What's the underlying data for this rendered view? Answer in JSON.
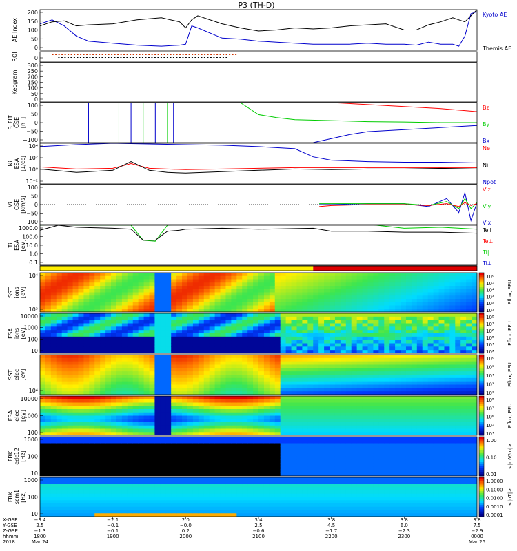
{
  "chart_data": {
    "type": "line",
    "title": "P3 (TH-D)",
    "panels": [
      {
        "id": "ae",
        "ylabel": [
          "AE Index"
        ],
        "ylim": [
          0,
          200
        ],
        "yticks": [
          "200",
          "150",
          "100",
          "50",
          "0"
        ],
        "legend": [
          {
            "name": "Kyoto AE",
            "color": "#0000cc"
          },
          {
            "name": "Themis AE",
            "color": "#000000"
          }
        ],
        "series": [
          {
            "name": "Kyoto AE",
            "color": "#0000cc",
            "x": [
              1800,
              1810,
              1820,
              1830,
              1840,
              1900,
              1920,
              1940,
              1955,
              2000,
              2005,
              2010,
              2030,
              2045,
              2100,
              2115,
              2130,
              2145,
              2200,
              2215,
              2230,
              2245,
              2300,
              2310,
              2320,
              2330,
              2340,
              2345,
              2350,
              2355,
              2400
            ],
            "y": [
              130,
              150,
              120,
              70,
              45,
              35,
              25,
              20,
              25,
              30,
              120,
              110,
              60,
              55,
              45,
              40,
              35,
              30,
              30,
              30,
              35,
              30,
              30,
              25,
              40,
              30,
              30,
              20,
              70,
              180,
              190
            ]
          },
          {
            "name": "Themis AE",
            "color": "#000000",
            "x": [
              1800,
              1810,
              1820,
              1830,
              1840,
              1900,
              1920,
              1940,
              1955,
              2000,
              2005,
              2010,
              2030,
              2045,
              2100,
              2115,
              2130,
              2145,
              2200,
              2215,
              2230,
              2245,
              2300,
              2310,
              2320,
              2330,
              2340,
              2345,
              2350,
              2355,
              2400
            ],
            "y": [
              120,
              140,
              145,
              120,
              125,
              130,
              150,
              160,
              140,
              110,
              150,
              170,
              130,
              110,
              95,
              100,
              110,
              105,
              110,
              120,
              125,
              130,
              100,
              100,
              125,
              140,
              160,
              150,
              140,
              170,
              200
            ]
          }
        ]
      },
      {
        "id": "roi",
        "ylabel": [
          "ROI"
        ],
        "ylim": [
          0,
          1
        ],
        "yticks": [
          "0"
        ]
      },
      {
        "id": "keogram",
        "ylabel": [
          "Keogram"
        ],
        "ylim": [
          0,
          300
        ],
        "yticks": [
          "300",
          "250",
          "200",
          "150",
          "100",
          "50",
          "0"
        ]
      },
      {
        "id": "bfield",
        "ylabel": [
          "B_FIT",
          "GSE",
          "[nT]"
        ],
        "ylim": [
          -100,
          100
        ],
        "yticks": [
          "100",
          "50",
          "0",
          "−50",
          "−100"
        ],
        "legend": [
          {
            "name": "Bz",
            "color": "#ff0000"
          },
          {
            "name": "By",
            "color": "#00cc00"
          },
          {
            "name": "Bx",
            "color": "#0000cc"
          }
        ],
        "series": [
          {
            "name": "Bz",
            "color": "#ff0000",
            "x": [
              2200,
              2230,
              2300,
              2330,
              2350,
              2400
            ],
            "y": [
              100,
              90,
              80,
              70,
              60,
              55
            ]
          },
          {
            "name": "By",
            "color": "#00cc00",
            "x": [
              2045,
              2100,
              2115,
              2130,
              2200,
              2230,
              2300,
              2330,
              2400
            ],
            "y": [
              100,
              40,
              25,
              15,
              10,
              5,
              3,
              0,
              0
            ]
          },
          {
            "name": "Bx",
            "color": "#0000cc",
            "x": [
              2145,
              2200,
              2215,
              2230,
              2300,
              2330,
              2400
            ],
            "y": [
              -100,
              -80,
              -60,
              -45,
              -35,
              -25,
              -15
            ]
          }
        ]
      },
      {
        "id": "density",
        "ylabel": [
          "Ni",
          "ESA",
          "[1/cc]"
        ],
        "ylim": [
          -2,
          4
        ],
        "scale": "log",
        "yticks": [
          "10⁴",
          "10²",
          "10⁰",
          "10⁻²"
        ],
        "legend": [
          {
            "name": "Ne",
            "color": "#ff0000"
          },
          {
            "name": "Ni",
            "color": "#000000"
          },
          {
            "name": "Npot",
            "color": "#0000cc"
          }
        ],
        "series": [
          {
            "name": "Npot",
            "color": "#0000cc",
            "x": [
              1800,
              1830,
              1900,
              1930,
              2000,
              2030,
              2100,
              2130,
              2145,
              2200,
              2230,
              2300,
              2330,
              2400
            ],
            "y": [
              3.5,
              3.8,
              4.0,
              3.9,
              3.8,
              3.7,
              3.5,
              3.2,
              2.0,
              1.5,
              1.3,
              1.2,
              1.2,
              1.1
            ]
          },
          {
            "name": "Ne",
            "color": "#ff0000",
            "x": [
              1800,
              1830,
              1900,
              1915,
              1930,
              1945,
              2000,
              2030,
              2100,
              2130,
              2200,
              2230,
              2300,
              2330,
              2400
            ],
            "y": [
              0.5,
              0.2,
              0.3,
              1.0,
              0.3,
              0.2,
              0.1,
              0.2,
              0.3,
              0.4,
              0.4,
              0.4,
              0.4,
              0.4,
              0.4
            ]
          },
          {
            "name": "Ni",
            "color": "#000000",
            "x": [
              1800,
              1830,
              1900,
              1915,
              1930,
              1945,
              2000,
              2030,
              2100,
              2130,
              2200,
              2230,
              2300,
              2330,
              2400
            ],
            "y": [
              0.2,
              -0.3,
              0.0,
              1.3,
              0.0,
              -0.3,
              -0.4,
              -0.2,
              0.0,
              0.2,
              0.1,
              0.2,
              0.2,
              0.3,
              0.2
            ]
          }
        ]
      },
      {
        "id": "velocity",
        "ylabel": [
          "Vi",
          "GSE",
          "[km/s]"
        ],
        "ylim": [
          -100,
          100
        ],
        "yticks": [
          "100",
          "50",
          "0",
          "−50",
          "−100"
        ],
        "legend": [
          {
            "name": "Viz",
            "color": "#ff0000"
          },
          {
            "name": "Viy",
            "color": "#00cc00"
          },
          {
            "name": "Vix",
            "color": "#0000cc"
          }
        ],
        "series": [
          {
            "name": "Vix",
            "color": "#0000cc",
            "x": [
              2150,
              2200,
              2230,
              2300,
              2320,
              2335,
              2345,
              2350,
              2355,
              2400
            ],
            "y": [
              0,
              0,
              5,
              5,
              -10,
              30,
              -40,
              60,
              -80,
              10
            ]
          },
          {
            "name": "Viy",
            "color": "#00cc00",
            "x": [
              2150,
              2200,
              2230,
              2300,
              2320,
              2335,
              2345,
              2350,
              2355,
              2400
            ],
            "y": [
              5,
              5,
              5,
              5,
              -5,
              15,
              -20,
              30,
              -20,
              10
            ]
          },
          {
            "name": "Viz",
            "color": "#ff0000",
            "x": [
              2150,
              2200,
              2230,
              2300,
              2320,
              2335,
              2345,
              2350,
              2355,
              2400
            ],
            "y": [
              -10,
              -5,
              0,
              0,
              -5,
              5,
              -10,
              10,
              -5,
              5
            ]
          }
        ]
      },
      {
        "id": "temperature",
        "ylabel": [
          "Ti",
          "ESA",
          "[eV]"
        ],
        "ylim": [
          -1,
          3
        ],
        "scale": "log",
        "yticks": [
          "1000.0",
          "100.0",
          "10.0",
          "1.0",
          "0.1"
        ],
        "legend": [
          {
            "name": "Tell",
            "color": "#000000"
          },
          {
            "name": "Te⊥",
            "color": "#ff0000"
          },
          {
            "name": "Ti∥",
            "color": "#00cc00"
          },
          {
            "name": "Ti⊥",
            "color": "#0000cc"
          }
        ],
        "series": [
          {
            "name": "Ti∥",
            "color": "#00cc00",
            "x": [
              1800,
              1815,
              1830,
              1900,
              1915,
              1925,
              1935,
              1945,
              1955,
              2000,
              2030,
              2100,
              2145,
              2200,
              2230,
              2300,
              2330,
              2400
            ],
            "y": [
              3.0,
              3.1,
              3.0,
              3.0,
              3.0,
              1.5,
              1.4,
              3.0,
              3.1,
              3.1,
              3.1,
              3.1,
              3.1,
              3.1,
              3.1,
              2.7,
              2.8,
              2.6
            ]
          },
          {
            "name": "Tell",
            "color": "#000000",
            "x": [
              1800,
              1815,
              1830,
              1900,
              1915,
              1925,
              1935,
              1945,
              1955,
              2000,
              2030,
              2100,
              2145,
              2200,
              2230,
              2300,
              2330,
              2400
            ],
            "y": [
              2.5,
              3.0,
              2.8,
              2.7,
              2.6,
              1.5,
              1.5,
              2.4,
              2.5,
              2.6,
              2.7,
              2.6,
              2.7,
              2.4,
              2.4,
              2.3,
              2.3,
              2.2
            ]
          }
        ]
      },
      {
        "id": "mode",
        "ylabel": [],
        "ylim": [
          0,
          1
        ],
        "yticks": []
      },
      {
        "id": "sst_i",
        "ylabel": [
          "SST",
          "ions",
          "[eV]"
        ],
        "yticks": [
          "10⁴",
          "10³"
        ],
        "colorbar": [
          "10⁶",
          "10⁵",
          "10⁴",
          "10³",
          "10²",
          "10¹"
        ],
        "colorbar_label": "Eflux, EFU"
      },
      {
        "id": "esa_i",
        "ylabel": [
          "ESA",
          "ions",
          "[eV]"
        ],
        "yticks": [
          "10000",
          "1000",
          "100",
          "10"
        ],
        "colorbar": [
          "10⁸",
          "10⁷",
          "10⁶",
          "10⁵",
          "10⁴",
          "10³"
        ],
        "colorbar_label": "Eflux, EFU"
      },
      {
        "id": "sst_e",
        "ylabel": [
          "SST",
          "elec",
          "[eV]"
        ],
        "yticks": [
          "10⁴"
        ],
        "colorbar": [
          "10⁶",
          "10⁵",
          "10⁴",
          "10³",
          "10²"
        ],
        "colorbar_label": "Eflux, EFU"
      },
      {
        "id": "esa_e",
        "ylabel": [
          "ESA",
          "elec",
          "[eV]"
        ],
        "yticks": [
          "10000",
          "1000",
          "100"
        ],
        "colorbar": [
          "10⁸",
          "10⁷",
          "10⁶",
          "10⁵",
          "10⁴"
        ],
        "colorbar_label": "Eflux, EFU"
      },
      {
        "id": "fbk_e",
        "ylabel": [
          "FBK",
          "edc12",
          "[Hz]"
        ],
        "yticks": [
          "1000",
          "100",
          "10"
        ],
        "colorbar": [
          "1.00",
          "0.10",
          "0.01"
        ],
        "colorbar_label": "<|mV/m|>"
      },
      {
        "id": "fbk_b",
        "ylabel": [
          "FBK",
          "scm1",
          "[Hz]"
        ],
        "yticks": [
          "1000",
          "100",
          "10"
        ],
        "colorbar": [
          "1.0000",
          "0.1000",
          "0.0100",
          "0.0010",
          "0.0001"
        ],
        "colorbar_label": "<|nT|>"
      }
    ],
    "xlim": [
      1800,
      2400
    ],
    "xaxis": {
      "row_labels": [
        "X-GSE",
        "Y-GSE",
        "Z-GSE",
        "hhmm",
        "2018"
      ],
      "ticks": [
        {
          "x": 1800,
          "rows": [
            "−3.4",
            "2.5",
            "−1.3",
            "1800",
            "Mar 24"
          ]
        },
        {
          "x": 1900,
          "rows": [
            "−2.1",
            "−0.1",
            "−0.1",
            "1900",
            ""
          ]
        },
        {
          "x": 2000,
          "rows": [
            "2.0",
            "−0.0",
            "0.2",
            "2000",
            ""
          ]
        },
        {
          "x": 2100,
          "rows": [
            "3.4",
            "2.5",
            "−0.6",
            "2100",
            ""
          ]
        },
        {
          "x": 2200,
          "rows": [
            "3.8",
            "4.5",
            "−1.7",
            "2200",
            ""
          ]
        },
        {
          "x": 2300,
          "rows": [
            "3.8",
            "6.0",
            "−2.3",
            "2300",
            ""
          ]
        },
        {
          "x": 2400,
          "rows": [
            "3.8",
            "7.5",
            "−2.9",
            "0000",
            "Mar 25"
          ]
        }
      ]
    }
  }
}
